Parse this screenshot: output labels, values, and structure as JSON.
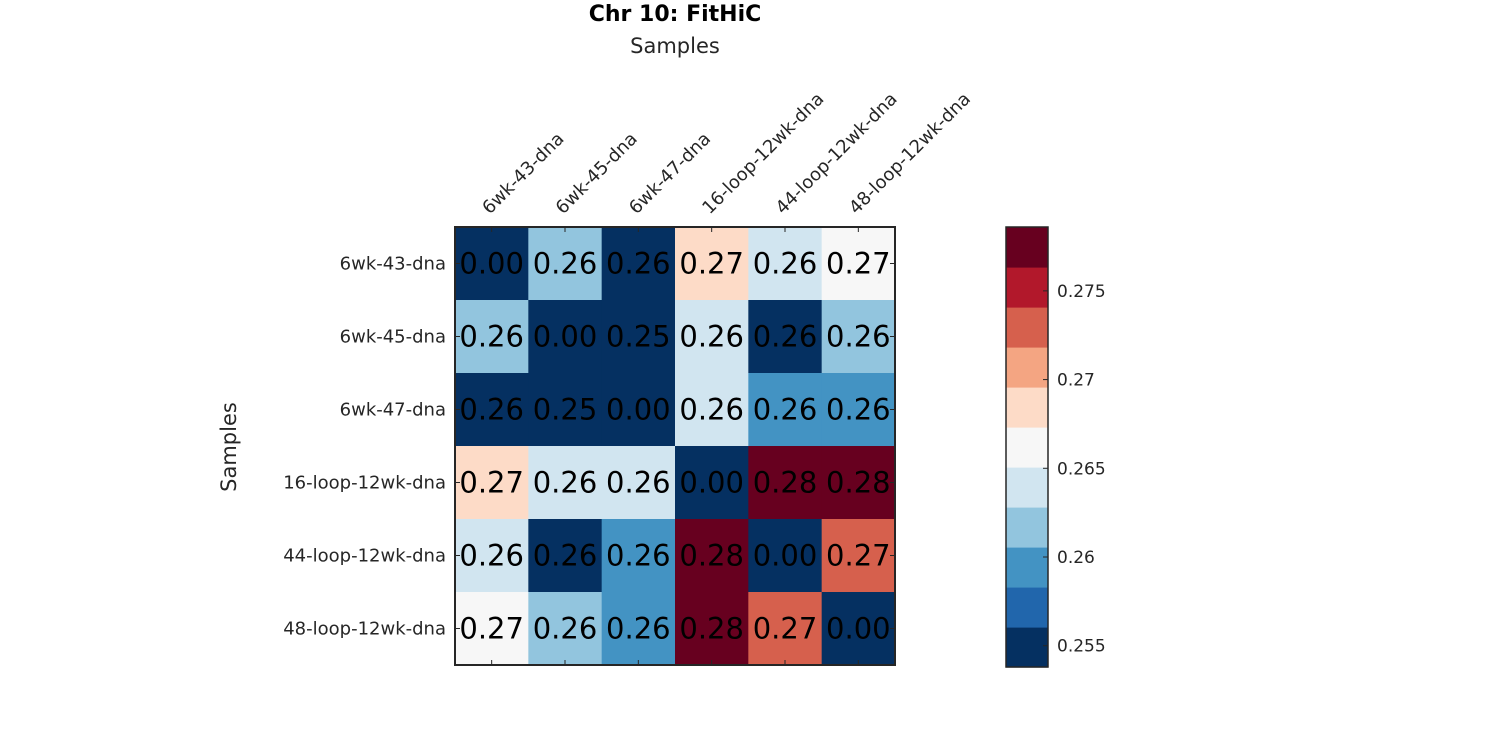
{
  "chart_data": {
    "type": "heatmap",
    "title": "Chr 10: FitHiC",
    "xlabel": "Samples",
    "ylabel": "Samples",
    "x_categories": [
      "6wk-43-dna",
      "6wk-45-dna",
      "6wk-47-dna",
      "16-loop-12wk-dna",
      "44-loop-12wk-dna",
      "48-loop-12wk-dna"
    ],
    "y_categories": [
      "6wk-43-dna",
      "6wk-45-dna",
      "6wk-47-dna",
      "16-loop-12wk-dna",
      "44-loop-12wk-dna",
      "48-loop-12wk-dna"
    ],
    "values": [
      [
        0.0,
        0.262,
        0.255,
        0.269,
        0.264,
        0.266
      ],
      [
        0.262,
        0.0,
        0.254,
        0.264,
        0.255,
        0.262
      ],
      [
        0.255,
        0.254,
        0.0,
        0.264,
        0.26,
        0.26
      ],
      [
        0.269,
        0.264,
        0.264,
        0.0,
        0.278,
        0.278
      ],
      [
        0.264,
        0.255,
        0.26,
        0.278,
        0.0,
        0.273
      ],
      [
        0.266,
        0.262,
        0.26,
        0.278,
        0.273,
        0.0
      ]
    ],
    "cell_labels": [
      [
        "0.00",
        "0.26",
        "0.26",
        "0.27",
        "0.26",
        "0.27"
      ],
      [
        "0.26",
        "0.00",
        "0.25",
        "0.26",
        "0.26",
        "0.26"
      ],
      [
        "0.26",
        "0.25",
        "0.00",
        "0.26",
        "0.26",
        "0.26"
      ],
      [
        "0.27",
        "0.26",
        "0.26",
        "0.00",
        "0.28",
        "0.28"
      ],
      [
        "0.26",
        "0.26",
        "0.26",
        "0.28",
        "0.00",
        "0.27"
      ],
      [
        "0.27",
        "0.26",
        "0.26",
        "0.28",
        "0.27",
        "0.00"
      ]
    ],
    "colorbar": {
      "min": 0.2538,
      "max": 0.2786,
      "ticks": [
        0.255,
        0.26,
        0.265,
        0.27,
        0.275
      ],
      "tick_labels": [
        "0.255",
        "0.26",
        "0.265",
        "0.27",
        "0.275"
      ],
      "colors": [
        "#053061",
        "#2166ac",
        "#4393c3",
        "#92c5de",
        "#d1e5f0",
        "#f7f7f7",
        "#fddbc7",
        "#f4a582",
        "#d6604d",
        "#b2182b",
        "#67001f"
      ]
    },
    "grid": false,
    "colorbar_position": "right"
  }
}
